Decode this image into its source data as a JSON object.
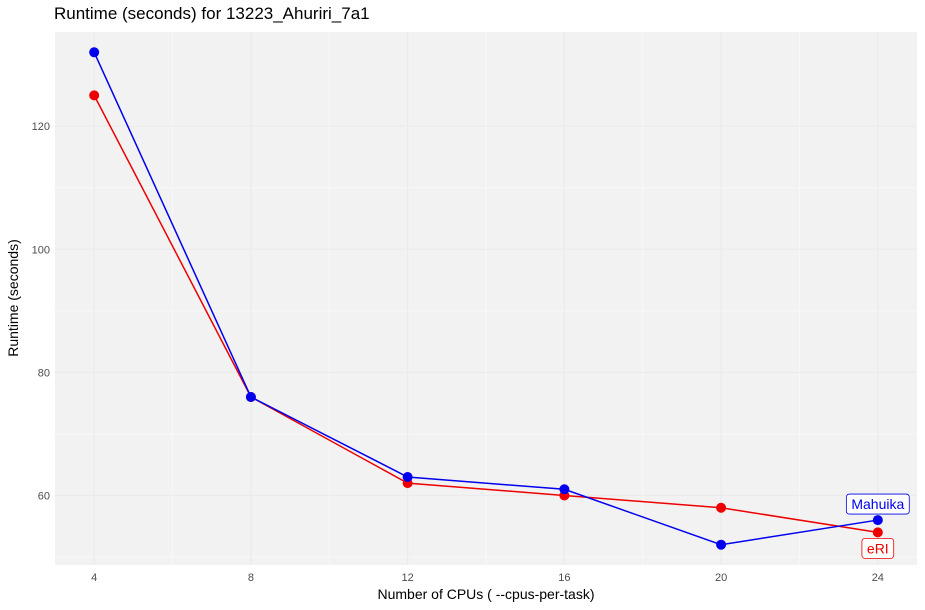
{
  "chart_data": {
    "type": "line",
    "title": "Runtime (seconds) for 13223_Ahuriri_7a1",
    "xlabel": "Number of CPUs  ( --cpus-per-task)",
    "ylabel": "Runtime (seconds)",
    "x": [
      4,
      8,
      12,
      16,
      20,
      24
    ],
    "x_ticks": [
      4,
      8,
      12,
      16,
      20,
      24
    ],
    "y_ticks": [
      60,
      80,
      100,
      120
    ],
    "xlim": [
      3,
      25
    ],
    "ylim": [
      48.7,
      135.3
    ],
    "grid": true,
    "series": [
      {
        "name": "Mahuika",
        "color": "#0000ee",
        "values": [
          132,
          76,
          63,
          61,
          52,
          56
        ]
      },
      {
        "name": "eRI",
        "color": "#ee0000",
        "values": [
          125,
          76,
          62,
          60,
          58,
          54
        ]
      }
    ]
  }
}
